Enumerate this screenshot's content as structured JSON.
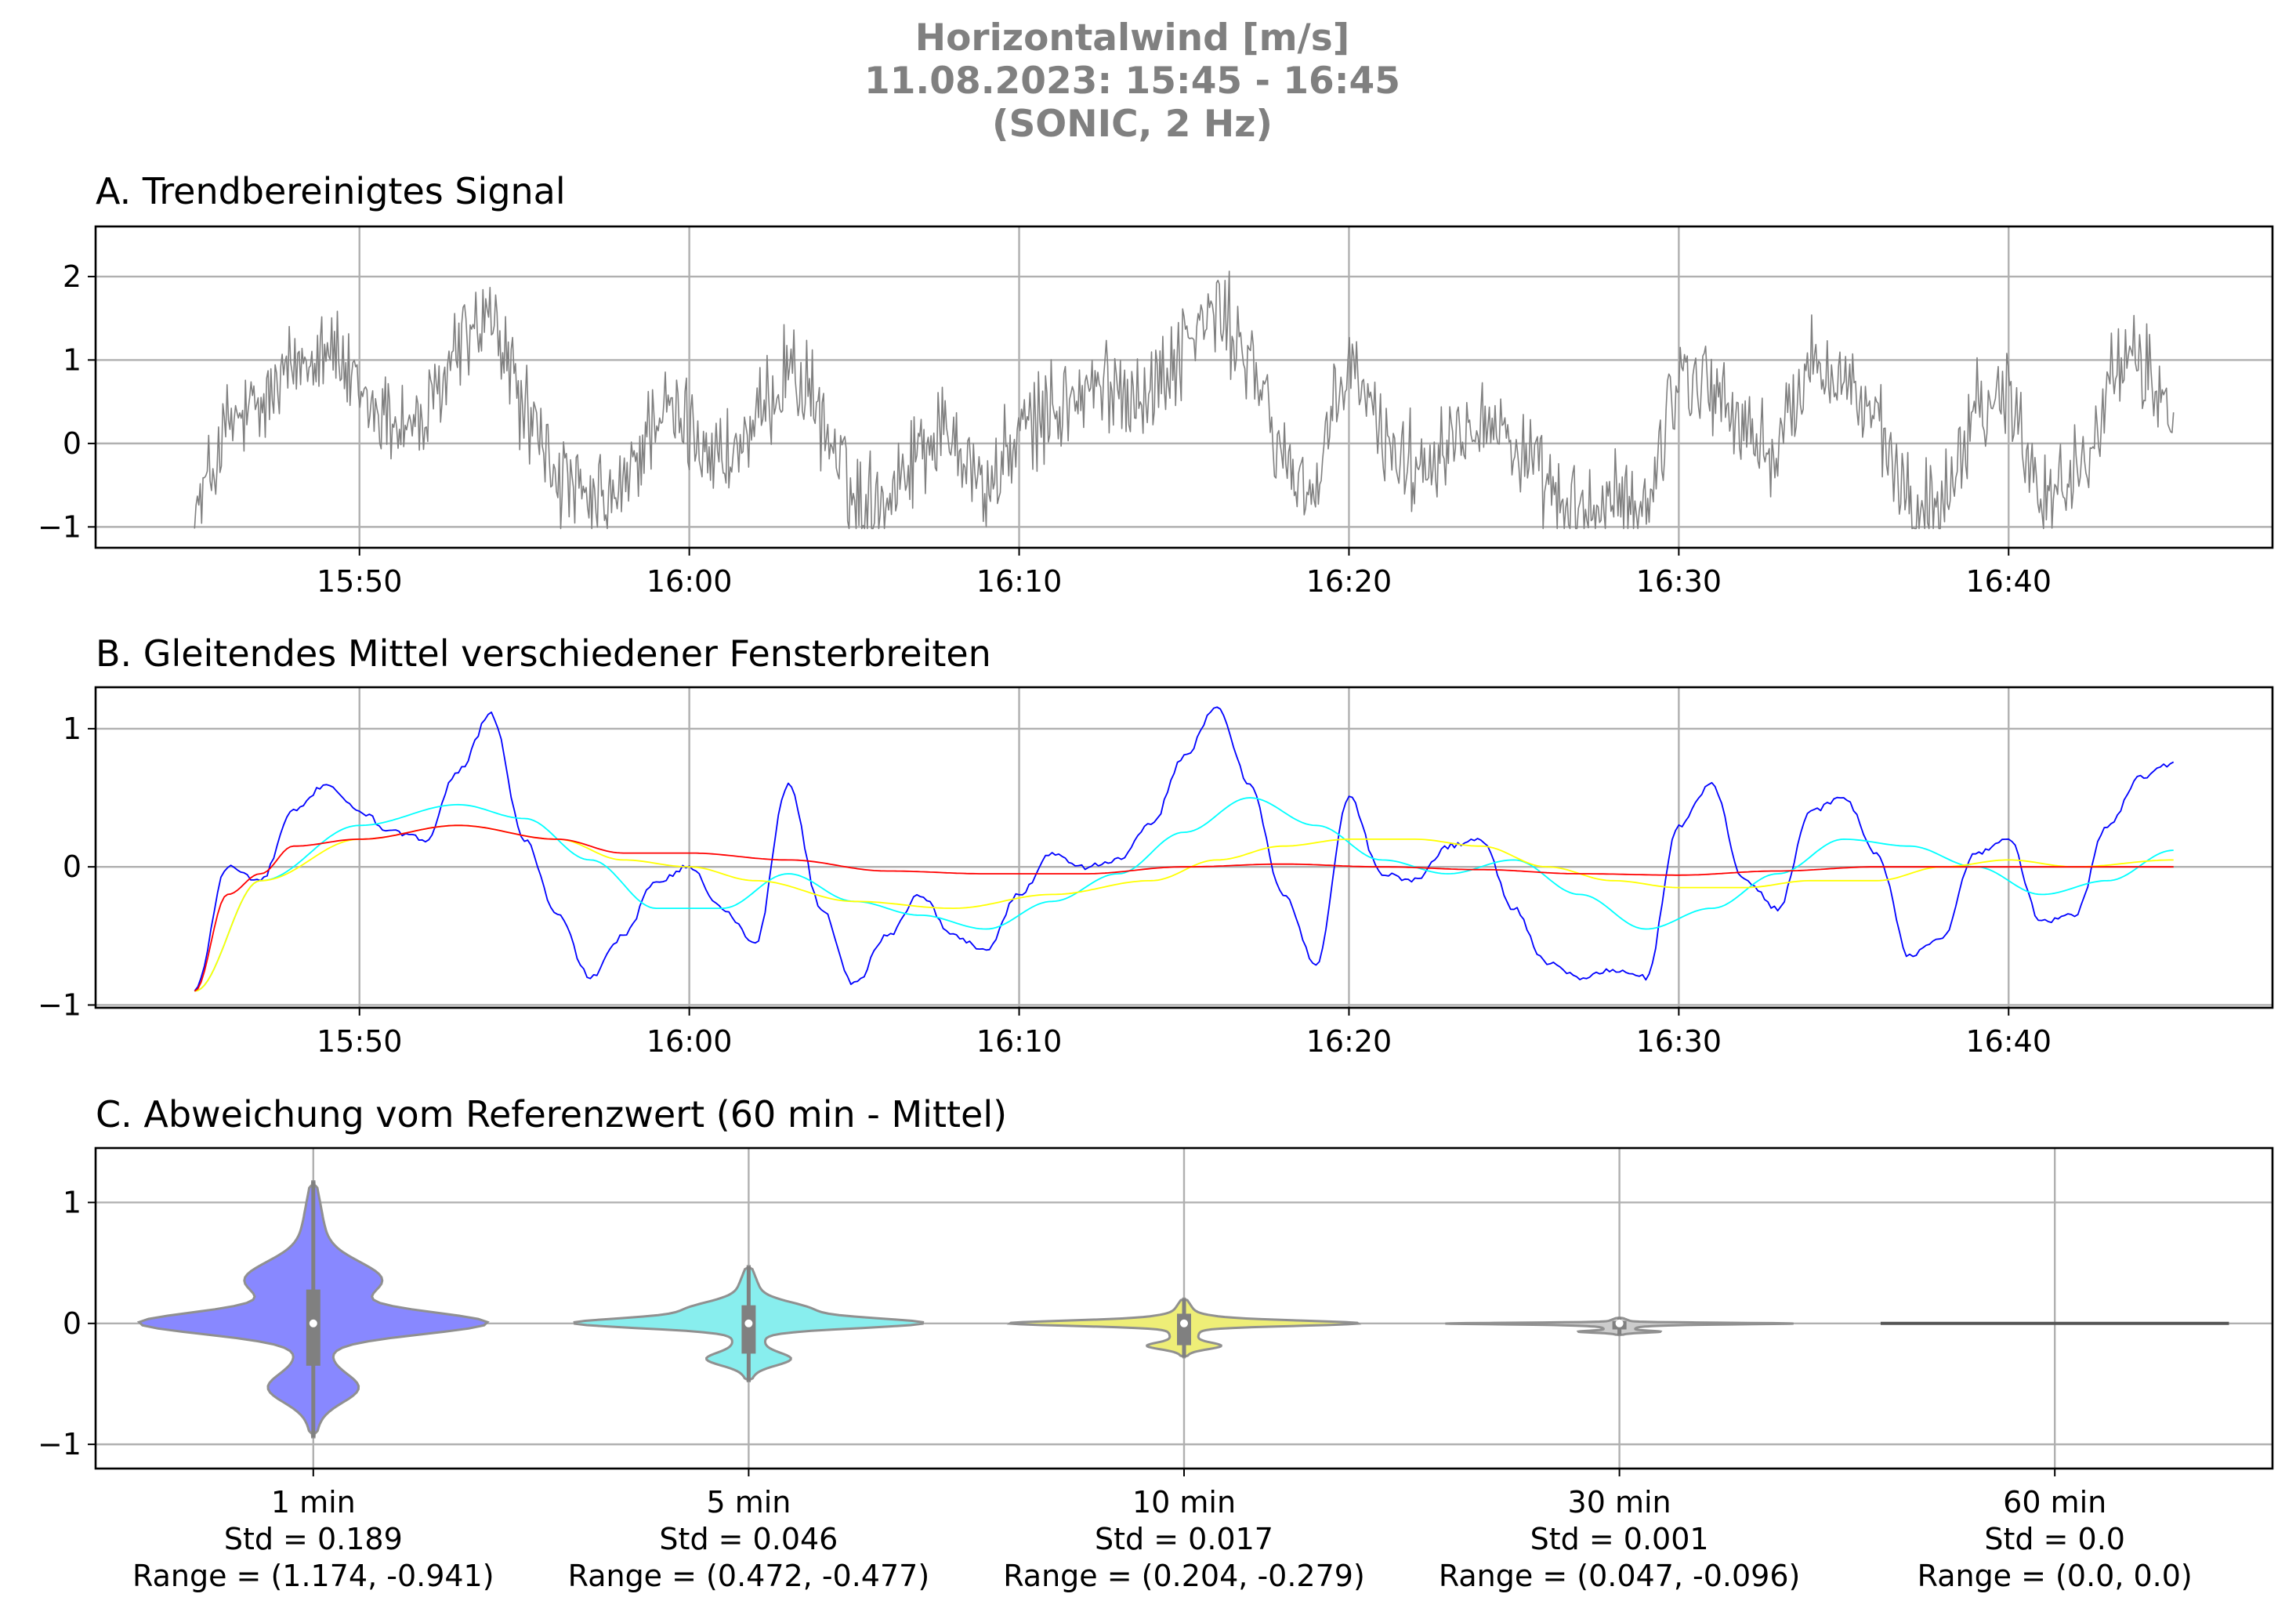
{
  "suptitle": [
    "Horizontalwind [m/s]",
    "11.08.2023:  15:45 -  16:45",
    "(SONIC, 2 Hz)"
  ],
  "panels": {
    "a": {
      "title": "A. Trendbereinigtes Signal"
    },
    "b": {
      "title": "B. Gleitendes Mittel verschiedener Fensterbreiten"
    },
    "c": {
      "title": "C. Abweichung vom Referenzwert (60 min - Mittel)"
    }
  },
  "chart_data": [
    {
      "type": "line",
      "title": "A. Trendbereinigtes Signal",
      "x_ticks": [
        "15:50",
        "16:00",
        "16:10",
        "16:20",
        "16:30",
        "16:40"
      ],
      "xlim": [
        "15:42",
        "16:48"
      ],
      "ylim": [
        -1.25,
        2.6
      ],
      "y_ticks": [
        -1,
        0,
        1,
        2
      ],
      "grid": true,
      "series": [
        {
          "color": "#808080",
          "x": [
            "15:45",
            "15:46",
            "15:47",
            "15:48",
            "15:49",
            "15:50",
            "15:51",
            "15:52",
            "15:53",
            "15:54",
            "15:55",
            "15:56",
            "15:57",
            "15:58",
            "15:59",
            "16:00",
            "16:01",
            "16:02",
            "16:03",
            "16:04",
            "16:05",
            "16:06",
            "16:07",
            "16:08",
            "16:09",
            "16:10",
            "16:11",
            "16:12",
            "16:13",
            "16:14",
            "16:15",
            "16:16",
            "16:17",
            "16:18",
            "16:19",
            "16:20",
            "16:21",
            "16:22",
            "16:23",
            "16:24",
            "16:25",
            "16:26",
            "16:27",
            "16:28",
            "16:29",
            "16:30",
            "16:31",
            "16:32",
            "16:33",
            "16:34",
            "16:35",
            "16:36",
            "16:37",
            "16:38",
            "16:39",
            "16:40",
            "16:41",
            "16:42",
            "16:43",
            "16:44",
            "16:45"
          ],
          "y": [
            -0.9,
            0.2,
            0.4,
            0.9,
            1.3,
            0.5,
            0.3,
            0.2,
            1.2,
            1.5,
            0.4,
            -0.4,
            -0.8,
            -0.6,
            0.4,
            0.2,
            -0.2,
            0.1,
            1.0,
            0.3,
            -0.7,
            -0.6,
            0.0,
            0.2,
            -0.6,
            0.1,
            0.4,
            0.6,
            0.7,
            0.6,
            1.2,
            1.6,
            1.0,
            -0.2,
            -0.6,
            1.0,
            0.1,
            -0.3,
            0.1,
            0.4,
            0.0,
            -0.6,
            -0.9,
            -0.7,
            -0.8,
            0.9,
            0.7,
            0.1,
            -0.1,
            1.0,
            0.8,
            0.2,
            -0.8,
            -0.7,
            0.5,
            0.6,
            -0.6,
            -0.4,
            0.7,
            1.0,
            0.3
          ]
        }
      ]
    },
    {
      "type": "line",
      "title": "B. Gleitendes Mittel verschiedener Fensterbreiten",
      "x_ticks": [
        "15:50",
        "16:00",
        "16:10",
        "16:20",
        "16:30",
        "16:40"
      ],
      "xlim": [
        "15:42",
        "16:48"
      ],
      "ylim": [
        -1.02,
        1.3
      ],
      "y_ticks": [
        -1,
        0,
        1
      ],
      "grid": true,
      "series": [
        {
          "color": "#0000ff",
          "x": [
            "15:45",
            "15:46",
            "15:47",
            "15:48",
            "15:49",
            "15:50",
            "15:51",
            "15:52",
            "15:53",
            "15:54",
            "15:55",
            "15:56",
            "15:57",
            "15:58",
            "15:59",
            "16:00",
            "16:01",
            "16:02",
            "16:03",
            "16:04",
            "16:05",
            "16:06",
            "16:07",
            "16:08",
            "16:09",
            "16:10",
            "16:11",
            "16:12",
            "16:13",
            "16:14",
            "16:15",
            "16:16",
            "16:17",
            "16:18",
            "16:19",
            "16:20",
            "16:21",
            "16:22",
            "16:23",
            "16:24",
            "16:25",
            "16:26",
            "16:27",
            "16:28",
            "16:29",
            "16:30",
            "16:31",
            "16:32",
            "16:33",
            "16:34",
            "16:35",
            "16:36",
            "16:37",
            "16:38",
            "16:39",
            "16:40",
            "16:41",
            "16:42",
            "16:43",
            "16:44",
            "16:45"
          ],
          "y": [
            -0.9,
            0.0,
            -0.1,
            0.4,
            0.6,
            0.4,
            0.25,
            0.2,
            0.7,
            1.1,
            0.2,
            -0.35,
            -0.8,
            -0.5,
            -0.1,
            0.0,
            -0.3,
            -0.55,
            0.6,
            -0.3,
            -0.85,
            -0.5,
            -0.2,
            -0.5,
            -0.6,
            -0.2,
            0.1,
            0.0,
            0.05,
            0.3,
            0.8,
            1.15,
            0.6,
            -0.2,
            -0.7,
            0.5,
            -0.05,
            -0.1,
            0.15,
            0.2,
            -0.3,
            -0.7,
            -0.8,
            -0.75,
            -0.8,
            0.3,
            0.6,
            -0.1,
            -0.3,
            0.4,
            0.5,
            0.1,
            -0.65,
            -0.5,
            0.1,
            0.2,
            -0.4,
            -0.35,
            0.3,
            0.65,
            0.75
          ]
        },
        {
          "color": "#00ffff",
          "x": [
            "15:45",
            "15:47",
            "15:50",
            "15:53",
            "15:55",
            "15:57",
            "15:59",
            "16:01",
            "16:03",
            "16:05",
            "16:07",
            "16:09",
            "16:11",
            "16:13",
            "16:15",
            "16:17",
            "16:19",
            "16:21",
            "16:23",
            "16:25",
            "16:27",
            "16:29",
            "16:31",
            "16:33",
            "16:35",
            "16:37",
            "16:39",
            "16:41",
            "16:43",
            "16:45"
          ],
          "y": [
            -0.9,
            -0.1,
            0.3,
            0.45,
            0.35,
            0.05,
            -0.3,
            -0.3,
            -0.05,
            -0.25,
            -0.35,
            -0.45,
            -0.25,
            -0.05,
            0.25,
            0.5,
            0.3,
            0.05,
            -0.05,
            0.05,
            -0.2,
            -0.45,
            -0.3,
            -0.05,
            0.2,
            0.15,
            0.0,
            -0.2,
            -0.1,
            0.12
          ]
        },
        {
          "color": "#ffff00",
          "x": [
            "15:45",
            "15:47",
            "15:50",
            "15:53",
            "15:56",
            "15:58",
            "16:00",
            "16:02",
            "16:05",
            "16:08",
            "16:11",
            "16:14",
            "16:16",
            "16:18",
            "16:20",
            "16:22",
            "16:24",
            "16:26",
            "16:28",
            "16:30",
            "16:32",
            "16:34",
            "16:36",
            "16:38",
            "16:40",
            "16:42",
            "16:45"
          ],
          "y": [
            -0.9,
            -0.1,
            0.2,
            0.3,
            0.2,
            0.05,
            0.0,
            -0.1,
            -0.25,
            -0.3,
            -0.2,
            -0.1,
            0.05,
            0.15,
            0.2,
            0.2,
            0.15,
            0.0,
            -0.1,
            -0.15,
            -0.15,
            -0.1,
            -0.1,
            0.0,
            0.05,
            0.0,
            0.05
          ]
        },
        {
          "color": "#ff0000",
          "x": [
            "15:45",
            "15:46",
            "15:47",
            "15:48",
            "15:50",
            "15:53",
            "15:56",
            "15:58",
            "16:00",
            "16:03",
            "16:06",
            "16:09",
            "16:12",
            "16:15",
            "16:18",
            "16:21",
            "16:24",
            "16:27",
            "16:30",
            "16:33",
            "16:36",
            "16:40",
            "16:45"
          ],
          "y": [
            -0.9,
            -0.2,
            -0.05,
            0.15,
            0.2,
            0.3,
            0.2,
            0.1,
            0.1,
            0.05,
            -0.03,
            -0.05,
            -0.05,
            0.0,
            0.02,
            0.0,
            -0.02,
            -0.05,
            -0.06,
            -0.03,
            0.0,
            0.0,
            0.0
          ]
        }
      ]
    },
    {
      "type": "violin",
      "title": "C. Abweichung vom Referenzwert (60 min - Mittel)",
      "ylim": [
        -1.2,
        1.45
      ],
      "y_ticks": [
        -1,
        0,
        1
      ],
      "grid": true,
      "categories": [
        {
          "label": "1 min",
          "std_label": "Std = 0.189",
          "range_label": "Range = (1.174, -0.941)",
          "color": "#8888ff",
          "range": [
            -0.941,
            1.174
          ],
          "q1": -0.35,
          "q3": 0.28
        },
        {
          "label": "5 min",
          "std_label": "Std = 0.046",
          "range_label": "Range = (0.472, -0.477)",
          "color": "#88eeee",
          "range": [
            -0.477,
            0.472
          ],
          "q1": -0.25,
          "q3": 0.15
        },
        {
          "label": "10 min",
          "std_label": "Std = 0.017",
          "range_label": "Range = (0.204, -0.279)",
          "color": "#eeee77",
          "range": [
            -0.279,
            0.204
          ],
          "q1": -0.18,
          "q3": 0.08
        },
        {
          "label": "30 min",
          "std_label": "Std = 0.001",
          "range_label": "Range = (0.047, -0.096)",
          "color": "#cccccc",
          "range": [
            -0.096,
            0.047
          ],
          "q1": -0.05,
          "q3": 0.02
        },
        {
          "label": "60 min",
          "std_label": "Std = 0.0",
          "range_label": "Range = (0.0, 0.0)",
          "color": "#555555",
          "range": [
            0.0,
            0.0
          ],
          "q1": 0.0,
          "q3": 0.0
        }
      ]
    }
  ]
}
